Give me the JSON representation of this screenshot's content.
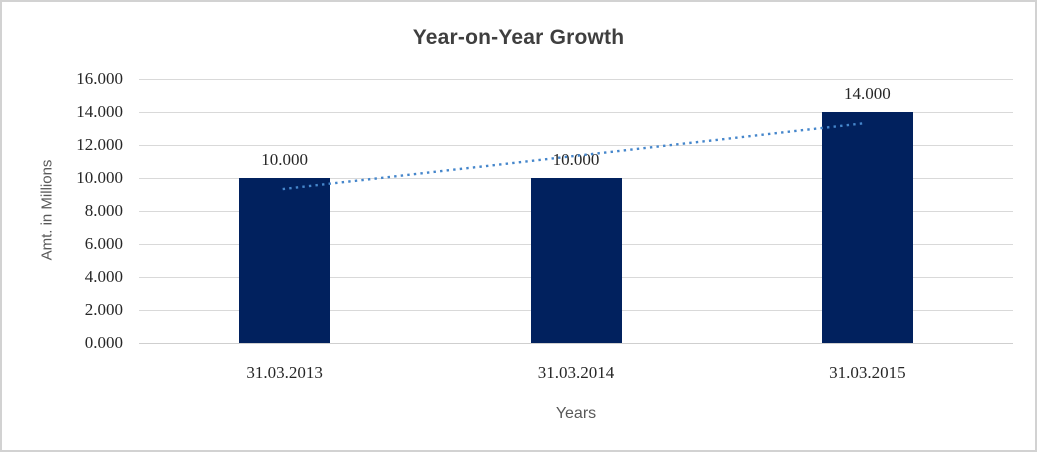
{
  "frame": {
    "background": "#ffffff",
    "border_color": "#d2d2d2"
  },
  "chart_data": {
    "type": "bar",
    "title": "Year-on-Year Growth",
    "xlabel": "Years",
    "ylabel": "Amt. in Millions",
    "categories": [
      "31.03.2013",
      "31.03.2014",
      "31.03.2015"
    ],
    "values": [
      10,
      10,
      14
    ],
    "value_labels": [
      "10.000",
      "10.000",
      "14.000"
    ],
    "y_ticks": [
      "0.000",
      "2.000",
      "4.000",
      "6.000",
      "8.000",
      "10.000",
      "12.000",
      "14.000",
      "16.000"
    ],
    "y_tick_step": 2,
    "ylim": [
      0,
      16
    ],
    "grid": true,
    "legend": false,
    "bar_color": "#01215e",
    "gridline_color": "#d9d9d9",
    "axis_line_color": "#cfcfcf",
    "trendline": {
      "style": "dotted",
      "color": "#4586cb",
      "start_value": 9.33,
      "end_value": 13.33
    }
  }
}
